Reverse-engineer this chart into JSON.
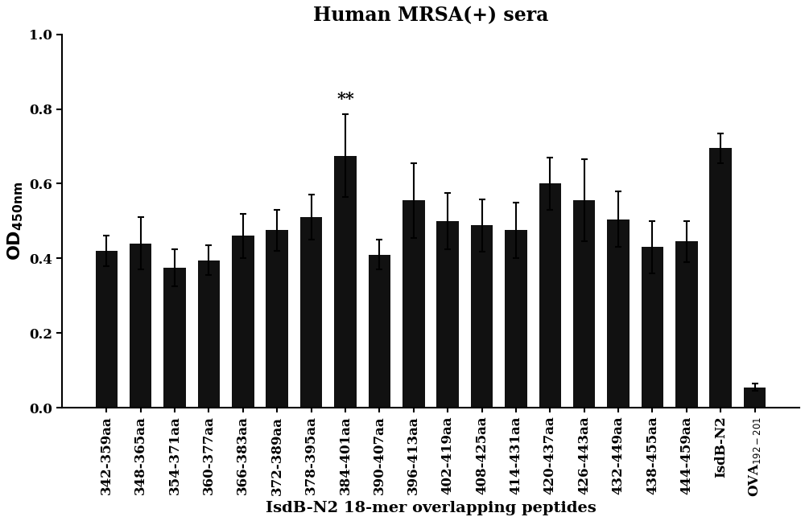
{
  "title": "Human MRSA(+) sera",
  "xlabel": "IsdB-N2 18-mer overlapping peptides",
  "ylabel": "OD$_{450nm}$",
  "categories": [
    "342-359aa",
    "348-365aa",
    "354-371aa",
    "360-377aa",
    "366-383aa",
    "372-389aa",
    "378-395aa",
    "384-401aa",
    "390-407aa",
    "396-413aa",
    "402-419aa",
    "408-425aa",
    "414-431aa",
    "420-437aa",
    "426-443aa",
    "432-449aa",
    "438-455aa",
    "444-459aa",
    "IsdB-N2",
    "OVA$_{192-201}$"
  ],
  "values": [
    0.42,
    0.44,
    0.375,
    0.395,
    0.46,
    0.475,
    0.51,
    0.675,
    0.41,
    0.555,
    0.5,
    0.488,
    0.475,
    0.6,
    0.555,
    0.505,
    0.43,
    0.445,
    0.695,
    0.055
  ],
  "errors": [
    0.04,
    0.07,
    0.05,
    0.04,
    0.06,
    0.055,
    0.06,
    0.11,
    0.04,
    0.1,
    0.075,
    0.07,
    0.075,
    0.07,
    0.11,
    0.075,
    0.07,
    0.055,
    0.04,
    0.01
  ],
  "bar_color": "#111111",
  "ylim": [
    0.0,
    1.0
  ],
  "yticks": [
    0.0,
    0.2,
    0.4,
    0.6,
    0.8,
    1.0
  ],
  "significance_bar_index": 7,
  "significance_label": "**",
  "title_fontsize": 17,
  "label_fontsize": 14,
  "tick_fontsize": 12,
  "bar_width": 0.65
}
